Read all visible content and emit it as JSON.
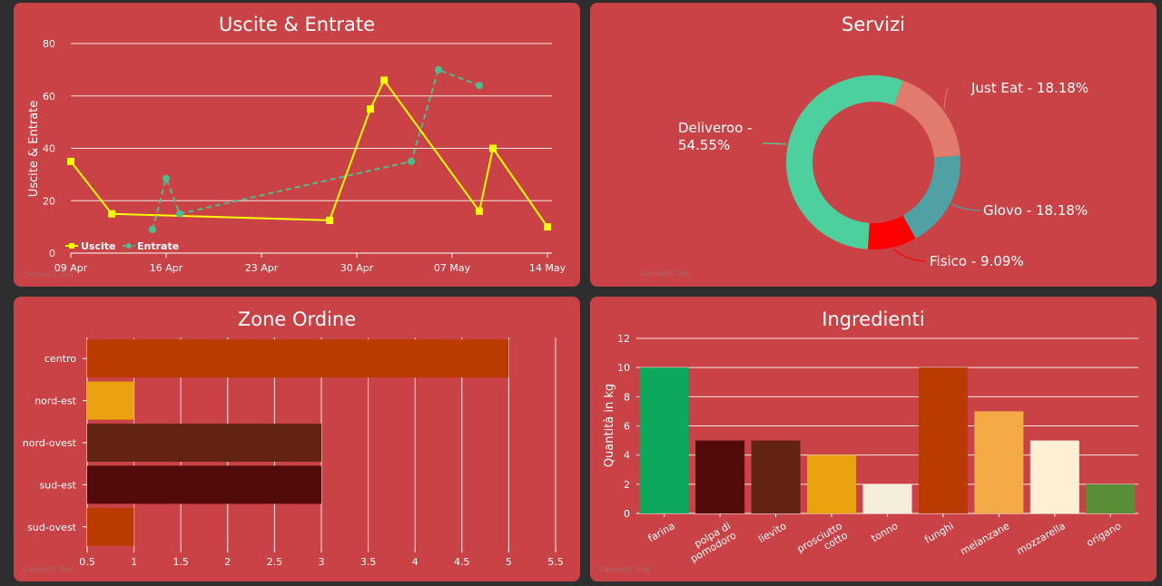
{
  "colors": {
    "background": "#2e2e2e",
    "panel": "#c94346",
    "uscite": "#ffff00",
    "entrate": "#4ebd8e"
  },
  "watermark": "CanvasJS Trial",
  "chart_data": [
    {
      "type": "line",
      "title": "Uscite & Entrate",
      "ylabel": "Uscite & Entrate",
      "xlabel": "",
      "ylim": [
        0,
        80
      ],
      "yticks": [
        "0",
        "20",
        "40",
        "60",
        "80"
      ],
      "xlim": [
        "2020-04-09",
        "2020-05-14"
      ],
      "xticks": [
        "09 Apr",
        "16 Apr",
        "23 Apr",
        "30 Apr",
        "07 May",
        "14 May"
      ],
      "grid": true,
      "legend_position": "bottom-left",
      "series": [
        {
          "name": "Uscite",
          "line_style": "solid",
          "marker": "square",
          "points": [
            {
              "x": "2020-04-09",
              "y": 35
            },
            {
              "x": "2020-04-12",
              "y": 15
            },
            {
              "x": "2020-04-28",
              "y": 12.5
            },
            {
              "x": "2020-05-01",
              "y": 55
            },
            {
              "x": "2020-05-02",
              "y": 66
            },
            {
              "x": "2020-05-09",
              "y": 16
            },
            {
              "x": "2020-05-10",
              "y": 40
            },
            {
              "x": "2020-05-14",
              "y": 10
            }
          ]
        },
        {
          "name": "Entrate",
          "line_style": "dashed",
          "marker": "circle",
          "points": [
            {
              "x": "2020-04-15",
              "y": 9
            },
            {
              "x": "2020-04-16",
              "y": 28.5
            },
            {
              "x": "2020-04-17",
              "y": 15
            },
            {
              "x": "2020-05-04",
              "y": 35
            },
            {
              "x": "2020-05-06",
              "y": 70
            },
            {
              "x": "2020-05-09",
              "y": 64
            }
          ]
        }
      ]
    },
    {
      "type": "pie",
      "title": "Servizi",
      "donut": true,
      "slices": [
        {
          "label": "Just Eat - 18.18%",
          "value": 18.18,
          "color": "#e07b6e"
        },
        {
          "label": "Glovo - 18.18%",
          "value": 18.18,
          "color": "#4fa1a4"
        },
        {
          "label": "Fisico - 9.09%",
          "value": 9.09,
          "color": "#ff0000"
        },
        {
          "label": "Deliveroo - 54.55%",
          "value": 54.55,
          "color": "#4ecf9e",
          "label_lines": [
            "Deliveroo -",
            "54.55%"
          ]
        }
      ]
    },
    {
      "type": "bar",
      "orientation": "horizontal",
      "title": "Zone Ordine",
      "xlim": [
        0.5,
        5.5
      ],
      "xticks": [
        "0.5",
        "1",
        "1.5",
        "2",
        "2.5",
        "3",
        "3.5",
        "4",
        "4.5",
        "5",
        "5.5"
      ],
      "grid": true,
      "categories": [
        "centro",
        "nord-est",
        "nord-ovest",
        "sud-est",
        "sud-ovest"
      ],
      "values": [
        5,
        1,
        3,
        3,
        1
      ],
      "bar_colors": [
        "#bb3a00",
        "#eba20f",
        "#632313",
        "#530a0a",
        "#bb3a00"
      ]
    },
    {
      "type": "bar",
      "title": "Ingredienti",
      "ylabel": "Quantità in kg",
      "ylim": [
        0,
        12
      ],
      "yticks": [
        "0",
        "2",
        "4",
        "6",
        "8",
        "10",
        "12"
      ],
      "grid": true,
      "categories": [
        "farina",
        "polpa di pomodoro",
        "lievito",
        "prosciutto cotto",
        "tonno",
        "funghi",
        "melanzane",
        "mozzarella",
        "origano"
      ],
      "category_label_lines": [
        [
          "farina"
        ],
        [
          "polpa di",
          "pomodoro"
        ],
        [
          "lievito"
        ],
        [
          "prosciutto",
          "cotto"
        ],
        [
          "tonno"
        ],
        [
          "funghi"
        ],
        [
          "melanzane"
        ],
        [
          "mozzarella"
        ],
        [
          "origano"
        ]
      ],
      "values": [
        10,
        5,
        5,
        4,
        2,
        10,
        7,
        5,
        2
      ],
      "bar_colors": [
        "#0ca85d",
        "#530a0a",
        "#632313",
        "#eba20f",
        "#f6eedc",
        "#bb3a00",
        "#f3aa47",
        "#feefd5",
        "#5a8e36"
      ]
    }
  ]
}
